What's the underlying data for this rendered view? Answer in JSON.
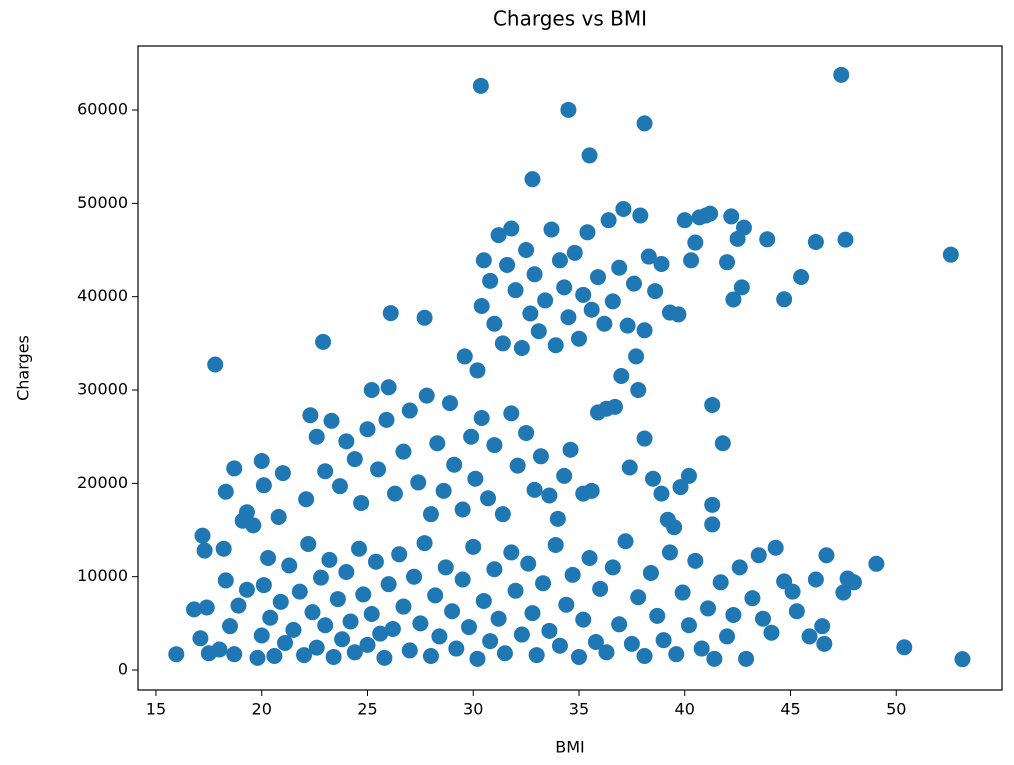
{
  "chart_data": {
    "type": "scatter",
    "title": "Charges vs BMI",
    "x_label": "BMI",
    "y_label": "Charges",
    "color": "#1f77b4",
    "x": [
      15.96,
      17.8,
      30.36,
      34.5,
      38.1,
      35.5,
      32.8,
      47.4,
      52.58,
      50.38,
      53.13,
      49.06,
      22.9,
      26.1,
      27.7,
      44.7,
      45.5,
      47.6,
      46.2,
      43.9,
      17.2,
      17.3,
      17.1,
      16.8,
      17.5,
      17.4,
      18.0,
      18.2,
      18.3,
      18.5,
      18.7,
      18.9,
      19.1,
      19.3,
      19.6,
      19.8,
      20.0,
      20.1,
      20.3,
      20.4,
      20.6,
      20.9,
      21.1,
      21.3,
      21.5,
      21.8,
      22.0,
      22.2,
      22.4,
      22.6,
      22.8,
      23.0,
      23.2,
      23.4,
      23.6,
      23.8,
      24.0,
      24.2,
      24.4,
      24.6,
      24.8,
      25.0,
      25.2,
      25.4,
      25.6,
      25.8,
      26.0,
      26.2,
      26.5,
      26.7,
      27.0,
      27.2,
      27.5,
      27.7,
      28.0,
      28.2,
      28.4,
      28.7,
      29.0,
      29.2,
      29.5,
      29.8,
      30.0,
      30.2,
      30.5,
      30.8,
      31.0,
      31.2,
      31.5,
      31.8,
      32.0,
      32.3,
      32.6,
      32.8,
      33.0,
      33.3,
      33.6,
      33.9,
      34.1,
      34.4,
      34.7,
      35.0,
      35.2,
      35.5,
      35.8,
      36.0,
      36.3,
      36.6,
      36.9,
      37.2,
      37.5,
      37.8,
      38.1,
      38.4,
      38.7,
      39.0,
      39.3,
      39.6,
      39.9,
      40.2,
      40.5,
      40.8,
      41.1,
      41.3,
      41.4,
      41.7,
      42.0,
      42.3,
      42.6,
      42.9,
      43.2,
      43.5,
      43.7,
      44.1,
      44.3,
      44.7,
      45.1,
      45.3,
      45.9,
      46.2,
      46.5,
      46.6,
      46.7,
      47.5,
      47.7,
      48.0,
      18.3,
      18.7,
      19.3,
      20.0,
      20.1,
      20.8,
      21.0,
      22.1,
      22.3,
      22.6,
      23.0,
      23.3,
      23.7,
      24.0,
      24.4,
      24.7,
      25.0,
      25.2,
      25.5,
      25.9,
      26.0,
      26.3,
      26.7,
      27.0,
      27.4,
      27.8,
      28.0,
      28.3,
      28.6,
      28.9,
      29.1,
      29.5,
      29.9,
      30.1,
      30.4,
      30.7,
      31.0,
      31.4,
      31.8,
      32.1,
      32.5,
      32.9,
      33.2,
      33.6,
      34.0,
      34.3,
      34.6,
      35.2,
      35.6,
      35.9,
      36.3,
      36.7,
      37.0,
      37.4,
      37.7,
      37.8,
      38.1,
      38.5,
      38.9,
      39.2,
      39.5,
      39.8,
      40.2,
      41.3,
      41.8,
      41.3,
      29.6,
      30.2,
      30.4,
      30.5,
      30.8,
      31.0,
      31.2,
      31.4,
      31.6,
      31.8,
      32.0,
      32.3,
      32.5,
      32.7,
      32.9,
      33.1,
      33.4,
      33.7,
      33.9,
      34.1,
      34.3,
      34.5,
      34.8,
      35.0,
      35.2,
      35.4,
      35.6,
      35.9,
      36.2,
      36.4,
      36.6,
      36.9,
      37.1,
      37.3,
      37.6,
      37.9,
      38.1,
      38.3,
      38.6,
      38.9,
      39.3,
      39.7,
      40.0,
      40.3,
      40.5,
      40.7,
      41.0,
      41.2,
      42.0,
      42.2,
      42.3,
      42.5,
      42.8,
      42.7
    ],
    "values": [
      1694,
      32734,
      62592,
      60021,
      58571,
      55135,
      52590,
      63770,
      44501,
      2438,
      1163,
      11381,
      35160,
      38245,
      37742,
      39722,
      42112,
      46113,
      45863,
      46151,
      14400,
      12800,
      3400,
      6500,
      1800,
      6700,
      2200,
      13000,
      9600,
      4700,
      1700,
      6900,
      16000,
      8600,
      15500,
      1300,
      3700,
      9100,
      12000,
      5600,
      1500,
      7300,
      2900,
      11200,
      4300,
      8400,
      1600,
      13500,
      6200,
      2400,
      9900,
      4800,
      11800,
      1400,
      7600,
      3300,
      10500,
      5200,
      1900,
      13000,
      8100,
      2700,
      6000,
      11600,
      3900,
      1300,
      9200,
      4400,
      12400,
      6800,
      2100,
      10000,
      5000,
      13600,
      1500,
      8000,
      3600,
      11000,
      6300,
      2300,
      9700,
      4600,
      13200,
      1200,
      7400,
      3100,
      10800,
      5500,
      1800,
      12600,
      8500,
      3800,
      11400,
      6100,
      1600,
      9300,
      4200,
      13400,
      2600,
      7000,
      10200,
      1400,
      5400,
      12000,
      3000,
      8700,
      1900,
      11000,
      4900,
      13800,
      2800,
      7800,
      1500,
      10400,
      5800,
      3200,
      12600,
      1700,
      8300,
      4800,
      11700,
      2300,
      6600,
      15600,
      1200,
      9400,
      3600,
      5900,
      11000,
      1200,
      7700,
      12300,
      5500,
      4000,
      13100,
      9500,
      8400,
      6300,
      3600,
      9700,
      4700,
      2800,
      12300,
      8300,
      9800,
      9400,
      19100,
      21600,
      16900,
      22400,
      19800,
      16400,
      21100,
      18300,
      27300,
      25000,
      21300,
      26700,
      19700,
      24500,
      22600,
      17900,
      25800,
      30000,
      21500,
      26800,
      30300,
      18900,
      23400,
      27800,
      20100,
      29400,
      16700,
      24300,
      19200,
      28600,
      22000,
      17200,
      25000,
      20500,
      27000,
      18400,
      24100,
      16700,
      27500,
      21900,
      25400,
      19300,
      22900,
      18700,
      16200,
      20800,
      23600,
      18900,
      19200,
      27600,
      28000,
      28200,
      31500,
      21700,
      33600,
      30000,
      24800,
      20500,
      18900,
      16100,
      15300,
      19600,
      20800,
      28400,
      24300,
      17700,
      33600,
      32100,
      39000,
      43900,
      41700,
      37100,
      46600,
      35000,
      43400,
      47300,
      40700,
      34500,
      45000,
      38200,
      42400,
      36300,
      39600,
      47200,
      34800,
      43900,
      41000,
      37800,
      44700,
      35500,
      40200,
      46900,
      38600,
      42100,
      37100,
      48200,
      39500,
      43100,
      49400,
      36900,
      41400,
      48700,
      36400,
      44300,
      40600,
      43500,
      38300,
      38100,
      48200,
      43900,
      45800,
      48500,
      48700,
      48900,
      43700,
      48600,
      39700,
      46200,
      47400,
      41000
    ],
    "xlim": [
      14.15,
      55.0
    ],
    "ylim": [
      -2140,
      66860
    ],
    "xticks": [
      15,
      20,
      25,
      30,
      35,
      40,
      45,
      50
    ],
    "yticks": [
      0,
      10000,
      20000,
      30000,
      40000,
      50000,
      60000
    ]
  }
}
